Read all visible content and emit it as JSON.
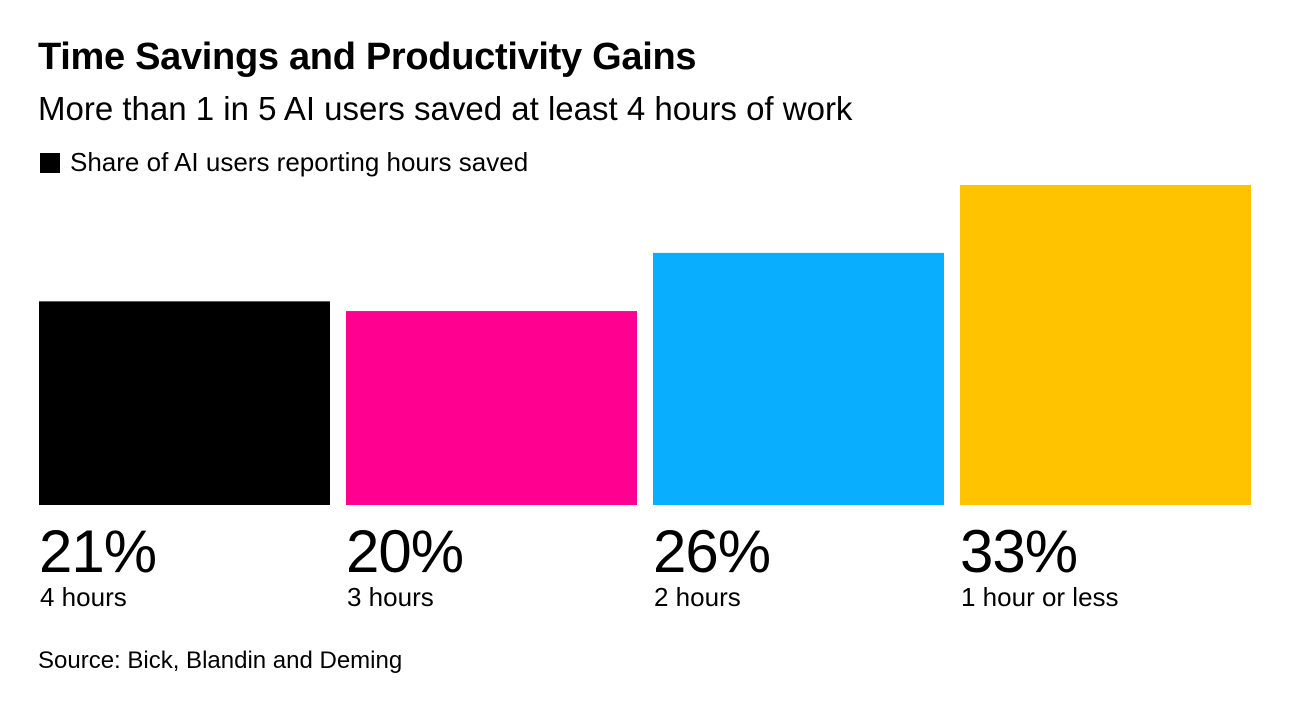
{
  "chart_data": {
    "type": "bar",
    "title": "Time Savings and Productivity Gains",
    "subtitle": "More than 1 in 5 AI users saved at least 4 hours of work",
    "legend": "Share of AI users reporting hours saved",
    "legend_position": "top-left",
    "categories": [
      "4 hours",
      "3 hours",
      "2 hours",
      "1 hour or less"
    ],
    "values": [
      21,
      20,
      26,
      33
    ],
    "value_labels": [
      "21%",
      "20%",
      "26%",
      "33%"
    ],
    "colors": [
      "#000000",
      "#ff0090",
      "#0aaeff",
      "#ffc300"
    ],
    "ylim": [
      0,
      33
    ],
    "grid": false,
    "xlabel": "",
    "ylabel": ""
  },
  "source": "Source: Bick, Blandin and Deming"
}
